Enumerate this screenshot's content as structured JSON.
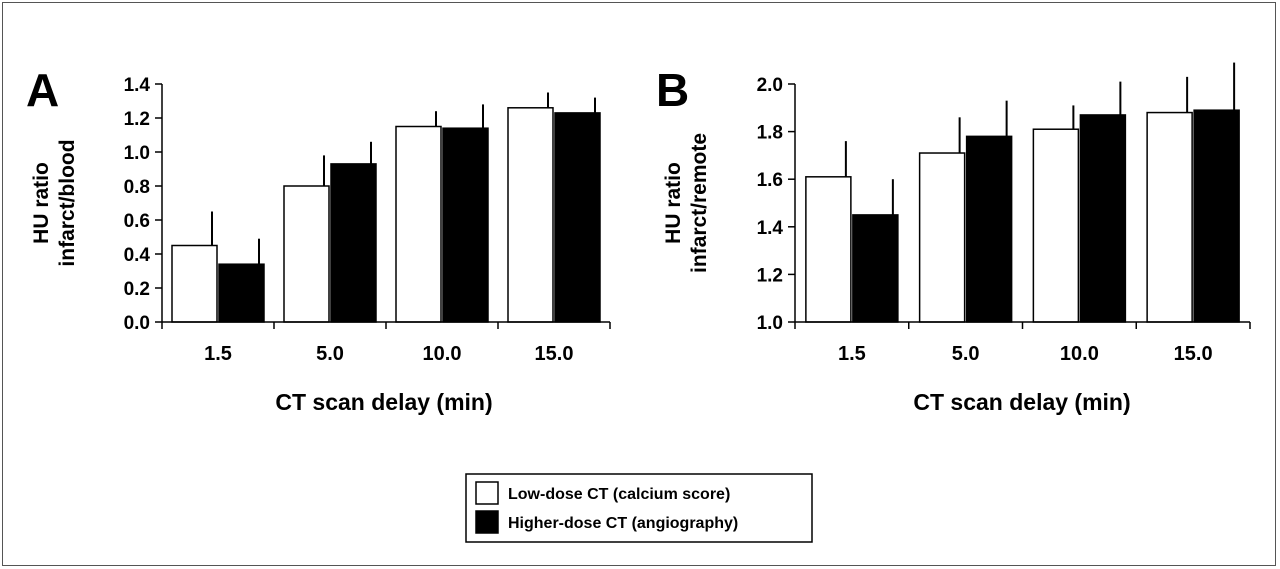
{
  "chart_data": [
    {
      "type": "bar",
      "panel_label": "A",
      "categories": [
        "1.5",
        "5.0",
        "10.0",
        "15.0"
      ],
      "xlabel": "CT scan delay (min)",
      "ylabel_lines": [
        "HU ratio",
        "infarct/blood"
      ],
      "ylim": [
        0.0,
        1.4
      ],
      "yticks": [
        "0.0",
        "0.2",
        "0.4",
        "0.6",
        "0.8",
        "1.0",
        "1.2",
        "1.4"
      ],
      "series": [
        {
          "name": "Low-dose CT (calcium score)",
          "fill": "#ffffff",
          "values": [
            0.45,
            0.8,
            1.15,
            1.26
          ],
          "errors": [
            0.2,
            0.18,
            0.09,
            0.09
          ]
        },
        {
          "name": "Higher-dose CT (angiography)",
          "fill": "#000000",
          "values": [
            0.34,
            0.93,
            1.14,
            1.23
          ],
          "errors": [
            0.15,
            0.13,
            0.14,
            0.09
          ]
        }
      ]
    },
    {
      "type": "bar",
      "panel_label": "B",
      "categories": [
        "1.5",
        "5.0",
        "10.0",
        "15.0"
      ],
      "xlabel": "CT scan delay (min)",
      "ylabel_lines": [
        "HU ratio",
        "infarct/remote"
      ],
      "ylim": [
        1.0,
        2.0
      ],
      "yticks": [
        "1.0",
        "1.2",
        "1.4",
        "1.6",
        "1.8",
        "2.0"
      ],
      "series": [
        {
          "name": "Low-dose CT (calcium score)",
          "fill": "#ffffff",
          "values": [
            1.61,
            1.71,
            1.81,
            1.88
          ],
          "errors": [
            0.15,
            0.15,
            0.1,
            0.15
          ]
        },
        {
          "name": "Higher-dose CT (angiography)",
          "fill": "#000000",
          "values": [
            1.45,
            1.78,
            1.87,
            1.89
          ],
          "errors": [
            0.15,
            0.15,
            0.14,
            0.2
          ]
        }
      ]
    }
  ],
  "legend": [
    {
      "label": "Low-dose CT (calcium score)",
      "fill": "#ffffff"
    },
    {
      "label": "Higher-dose CT (angiography)",
      "fill": "#000000"
    }
  ]
}
